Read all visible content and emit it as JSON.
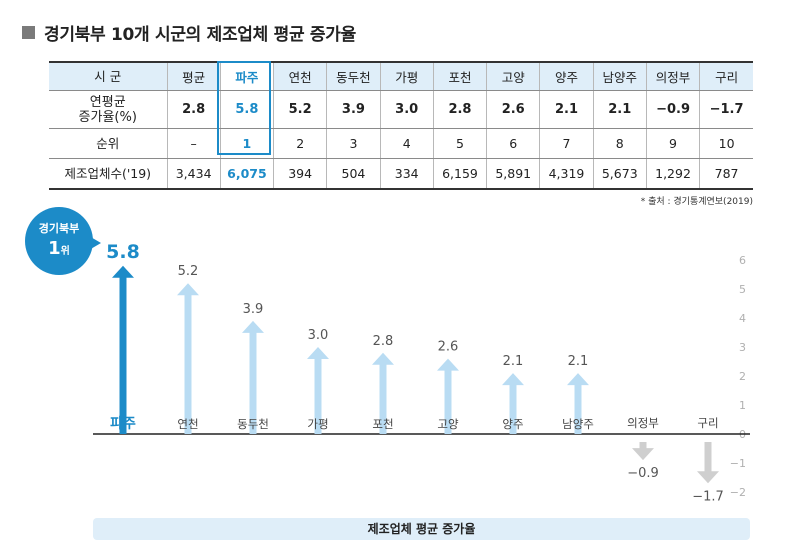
{
  "title": "경기북부 10개 시군의 제조업체 평균 증가율",
  "table": {
    "row_labels": [
      "시  군",
      "연평균\n증가율(%)",
      "순위",
      "제조업체수('19)"
    ],
    "columns": [
      {
        "name": "평균",
        "rate": "2.8",
        "rank": "–",
        "count": "3,434"
      },
      {
        "name": "파주",
        "rate": "5.8",
        "rank": "1",
        "count": "6,075"
      },
      {
        "name": "연천",
        "rate": "5.2",
        "rank": "2",
        "count": "394"
      },
      {
        "name": "동두천",
        "rate": "3.9",
        "rank": "3",
        "count": "504"
      },
      {
        "name": "가평",
        "rate": "3.0",
        "rank": "4",
        "count": "334"
      },
      {
        "name": "포천",
        "rate": "2.8",
        "rank": "5",
        "count": "6,159"
      },
      {
        "name": "고양",
        "rate": "2.6",
        "rank": "6",
        "count": "5,891"
      },
      {
        "name": "양주",
        "rate": "2.1",
        "rank": "7",
        "count": "4,319"
      },
      {
        "name": "남양주",
        "rate": "2.1",
        "rank": "8",
        "count": "5,673"
      },
      {
        "name": "의정부",
        "rate": "−0.9",
        "rank": "9",
        "count": "1,292"
      },
      {
        "name": "구리",
        "rate": "−1.7",
        "rank": "10",
        "count": "787"
      }
    ]
  },
  "source": "* 출처 : 경기통계연보(2019)",
  "badge": {
    "line1": "경기북부",
    "line2_num": "1",
    "line2_unit": "위"
  },
  "colors": {
    "highlight": "#1c8bc8",
    "arrow_light": "#b9dcf3",
    "arrow_gray": "#cfcfcf",
    "header_bg": "#dfeef9"
  },
  "chart_data": {
    "type": "bar",
    "categories": [
      "파주",
      "연천",
      "동두천",
      "가평",
      "포천",
      "고양",
      "양주",
      "남양주",
      "의정부",
      "구리"
    ],
    "values": [
      5.8,
      5.2,
      3.9,
      3.0,
      2.8,
      2.6,
      2.1,
      2.1,
      -0.9,
      -1.7
    ],
    "value_labels": [
      "5.8",
      "5.2",
      "3.9",
      "3.0",
      "2.8",
      "2.6",
      "2.1",
      "2.1",
      "−0.9",
      "−1.7"
    ],
    "highlight_index": 0,
    "ylim": [
      -2,
      6
    ],
    "yticks": [
      -2,
      -1,
      0,
      1,
      2,
      3,
      4,
      5,
      6
    ],
    "ytick_labels": [
      "−2",
      "−1",
      "0",
      "1",
      "2",
      "3",
      "4",
      "5",
      "6"
    ],
    "xlabel": "제조업체 평균 증가율"
  }
}
